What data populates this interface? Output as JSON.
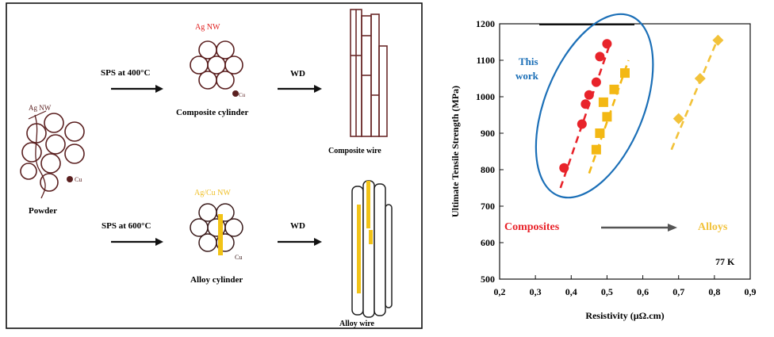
{
  "diagram": {
    "top_row": {
      "powder_label": "Ag NW",
      "powder_cu_label": "Cu",
      "step1_label": "SPS at 400°C",
      "cylinder_ag_label": "Ag NW",
      "cylinder_cu_label": "Cu",
      "cylinder_caption": "Composite cylinder",
      "step2_label": "WD",
      "wire_caption": "Composite wire"
    },
    "bottom_row": {
      "powder_caption": "Powder",
      "step1_label": "SPS at 600°C",
      "cylinder_agcu_label": "Ag/Cu NW",
      "cylinder_cu_label": "Cu",
      "cylinder_caption": "Alloy cylinder",
      "step2_label": "WD",
      "wire_caption": "Alloy wire"
    },
    "colors": {
      "outline": "#5a1f1f",
      "ag_red": "#e0201f",
      "alloy_yellow": "#f2c316",
      "yellow_label": "#f0c02a"
    }
  },
  "chart_data": {
    "type": "scatter",
    "xlabel": "Resistivity (µΩ.cm)",
    "ylabel": "Ultimate Tensile Strength (MPa)",
    "xlim": [
      0.2,
      0.9
    ],
    "ylim": [
      500,
      1200
    ],
    "x_ticks": [
      "0,2",
      "0,3",
      "0,4",
      "0,5",
      "0,6",
      "0,7",
      "0,8",
      "0,9"
    ],
    "y_ticks": [
      "500",
      "600",
      "700",
      "800",
      "900",
      "1000",
      "1100",
      "1200"
    ],
    "grid": false,
    "series": [
      {
        "name": "Composites",
        "color": "#e8232a",
        "marker": "circle",
        "points": [
          [
            0.38,
            805
          ],
          [
            0.43,
            925
          ],
          [
            0.44,
            980
          ],
          [
            0.45,
            1005
          ],
          [
            0.47,
            1040
          ],
          [
            0.48,
            1110
          ],
          [
            0.5,
            1145
          ]
        ],
        "trend": [
          [
            0.37,
            750
          ],
          [
            0.51,
            1150
          ]
        ]
      },
      {
        "name": "This work (yellow squares)",
        "color": "#f3b814",
        "marker": "square",
        "points": [
          [
            0.47,
            855
          ],
          [
            0.48,
            900
          ],
          [
            0.49,
            985
          ],
          [
            0.5,
            945
          ],
          [
            0.52,
            1020
          ],
          [
            0.55,
            1065
          ]
        ],
        "trend": [
          [
            0.45,
            790
          ],
          [
            0.56,
            1100
          ]
        ]
      },
      {
        "name": "Alloys",
        "color": "#f2c23a",
        "marker": "diamond",
        "points": [
          [
            0.7,
            940
          ],
          [
            0.76,
            1050
          ],
          [
            0.81,
            1155
          ]
        ],
        "trend": [
          [
            0.68,
            855
          ],
          [
            0.81,
            1160
          ]
        ]
      }
    ],
    "annotations": {
      "this_work": "This\nwork",
      "composites": "Composites",
      "alloys": "Alloys",
      "temperature": "77 K"
    },
    "annotation_colors": {
      "this_work": "#1b6fb7",
      "ellipse": "#1b6fb7",
      "composites": "#e8232a",
      "alloys": "#f2c23a",
      "arrow": "#555555"
    }
  }
}
